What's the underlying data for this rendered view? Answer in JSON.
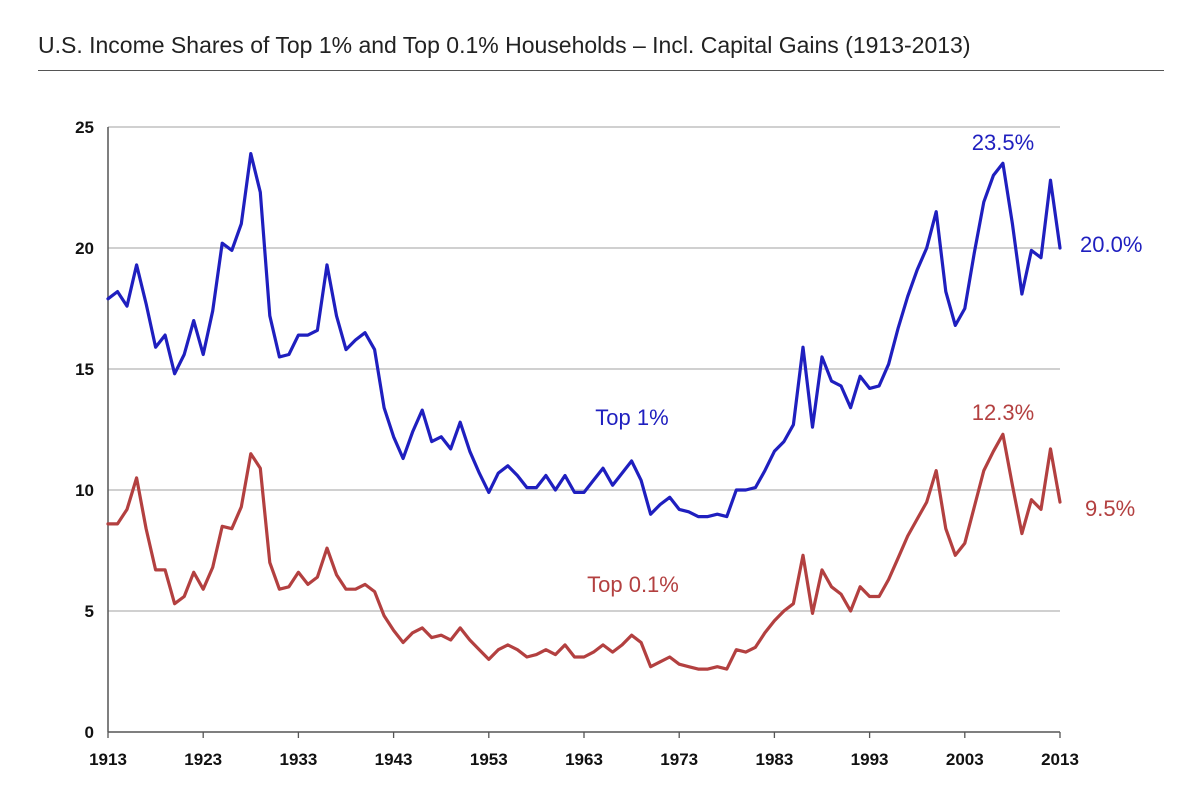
{
  "chart_data": {
    "type": "line",
    "title": "U.S. Income Shares of Top 1% and Top 0.1% Households – Incl. Capital Gains (1913-2013)",
    "xlabel": "",
    "ylabel": "",
    "xlim": [
      1913,
      2013
    ],
    "ylim": [
      0,
      25
    ],
    "grid": true,
    "y_ticks": [
      "0",
      "5",
      "10",
      "15",
      "20",
      "25"
    ],
    "x_ticks": [
      "1913",
      "1923",
      "1933",
      "1943",
      "1953",
      "1963",
      "1973",
      "1983",
      "1993",
      "2003",
      "2013"
    ],
    "x": [
      1913,
      1914,
      1915,
      1916,
      1917,
      1918,
      1919,
      1920,
      1921,
      1922,
      1923,
      1924,
      1925,
      1926,
      1927,
      1928,
      1929,
      1930,
      1931,
      1932,
      1933,
      1934,
      1935,
      1936,
      1937,
      1938,
      1939,
      1940,
      1941,
      1942,
      1943,
      1944,
      1945,
      1946,
      1947,
      1948,
      1949,
      1950,
      1951,
      1952,
      1953,
      1954,
      1955,
      1956,
      1957,
      1958,
      1959,
      1960,
      1961,
      1962,
      1963,
      1964,
      1965,
      1966,
      1967,
      1968,
      1969,
      1970,
      1971,
      1972,
      1973,
      1974,
      1975,
      1976,
      1977,
      1978,
      1979,
      1980,
      1981,
      1982,
      1983,
      1984,
      1985,
      1986,
      1987,
      1988,
      1989,
      1990,
      1991,
      1992,
      1993,
      1994,
      1995,
      1996,
      1997,
      1998,
      1999,
      2000,
      2001,
      2002,
      2003,
      2004,
      2005,
      2006,
      2007,
      2008,
      2009,
      2010,
      2011,
      2012,
      2013
    ],
    "series": [
      {
        "name": "Top 1%",
        "color": "#1f1fbf",
        "values": [
          17.9,
          18.2,
          17.6,
          19.3,
          17.7,
          15.9,
          16.4,
          14.8,
          15.6,
          17.0,
          15.6,
          17.4,
          20.2,
          19.9,
          21.0,
          23.9,
          22.3,
          17.2,
          15.5,
          15.6,
          16.4,
          16.4,
          16.6,
          19.3,
          17.2,
          15.8,
          16.2,
          16.5,
          15.8,
          13.4,
          12.2,
          11.3,
          12.4,
          13.3,
          12.0,
          12.2,
          11.7,
          12.8,
          11.6,
          10.7,
          9.9,
          10.7,
          11.0,
          10.6,
          10.1,
          10.1,
          10.6,
          10.0,
          10.6,
          9.9,
          9.9,
          10.4,
          10.9,
          10.2,
          10.7,
          11.2,
          10.4,
          9.0,
          9.4,
          9.7,
          9.2,
          9.1,
          8.9,
          8.9,
          9.0,
          8.9,
          10.0,
          10.0,
          10.1,
          10.8,
          11.6,
          12.0,
          12.7,
          15.9,
          12.6,
          15.5,
          14.5,
          14.3,
          13.4,
          14.7,
          14.2,
          14.3,
          15.2,
          16.7,
          18.0,
          19.1,
          20.0,
          21.5,
          18.2,
          16.8,
          17.5,
          19.8,
          21.9,
          23.0,
          23.5,
          21.0,
          18.1,
          19.9,
          19.6,
          22.8,
          20.0
        ]
      },
      {
        "name": "Top 0.1%",
        "color": "#b34040",
        "values": [
          8.6,
          8.6,
          9.2,
          10.5,
          8.4,
          6.7,
          6.7,
          5.3,
          5.6,
          6.6,
          5.9,
          6.8,
          8.5,
          8.4,
          9.3,
          11.5,
          10.9,
          7.0,
          5.9,
          6.0,
          6.6,
          6.1,
          6.4,
          7.6,
          6.5,
          5.9,
          5.9,
          6.1,
          5.8,
          4.8,
          4.2,
          3.7,
          4.1,
          4.3,
          3.9,
          4.0,
          3.8,
          4.3,
          3.8,
          3.4,
          3.0,
          3.4,
          3.6,
          3.4,
          3.1,
          3.2,
          3.4,
          3.2,
          3.6,
          3.1,
          3.1,
          3.3,
          3.6,
          3.3,
          3.6,
          4.0,
          3.7,
          2.7,
          2.9,
          3.1,
          2.8,
          2.7,
          2.6,
          2.6,
          2.7,
          2.6,
          3.4,
          3.3,
          3.5,
          4.1,
          4.6,
          5.0,
          5.3,
          7.3,
          4.9,
          6.7,
          6.0,
          5.7,
          5.0,
          6.0,
          5.6,
          5.6,
          6.3,
          7.2,
          8.1,
          8.8,
          9.5,
          10.8,
          8.4,
          7.3,
          7.8,
          9.3,
          10.8,
          11.6,
          12.3,
          10.2,
          8.2,
          9.6,
          9.2,
          11.7,
          9.5
        ]
      }
    ],
    "annotations": [
      {
        "text": "23.5%",
        "series": "Top 1%"
      },
      {
        "text": "20.0%",
        "series": "Top 1%"
      },
      {
        "text": "Top 1%",
        "series": "Top 1%"
      },
      {
        "text": "12.3%",
        "series": "Top 0.1%"
      },
      {
        "text": "9.5%",
        "series": "Top 0.1%"
      },
      {
        "text": "Top 0.1%",
        "series": "Top 0.1%"
      }
    ],
    "colors": {
      "grid": "#b5b5b5",
      "axis": "#555555"
    }
  }
}
